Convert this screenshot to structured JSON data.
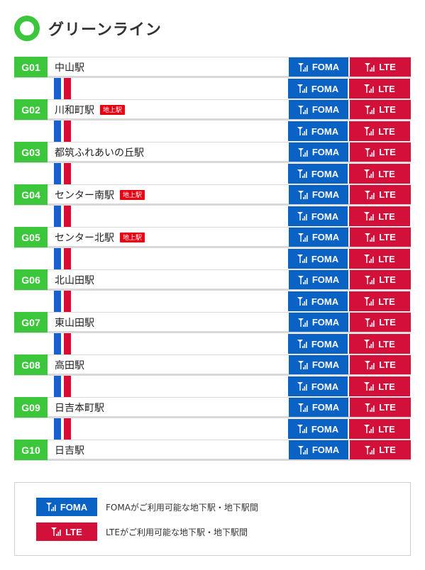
{
  "line": {
    "title": "グリーンライン",
    "color": "#3cc63c"
  },
  "badges": {
    "foma_label": "FOMA",
    "lte_label": "LTE",
    "ground_label": "地上駅"
  },
  "colors": {
    "foma": "#0a62c4",
    "lte": "#d3103a",
    "rail_blue": "#1a5fd0",
    "rail_red": "#d80b34",
    "ground": "#e60012"
  },
  "stations": [
    {
      "code": "G01",
      "name": "中山駅",
      "ground": false
    },
    {
      "code": "G02",
      "name": "川和町駅",
      "ground": true
    },
    {
      "code": "G03",
      "name": "都筑ふれあいの丘駅",
      "ground": false
    },
    {
      "code": "G04",
      "name": "センター南駅",
      "ground": true
    },
    {
      "code": "G05",
      "name": "センター北駅",
      "ground": true
    },
    {
      "code": "G06",
      "name": "北山田駅",
      "ground": false
    },
    {
      "code": "G07",
      "name": "東山田駅",
      "ground": false
    },
    {
      "code": "G08",
      "name": "高田駅",
      "ground": false
    },
    {
      "code": "G09",
      "name": "日吉本町駅",
      "ground": false
    },
    {
      "code": "G10",
      "name": "日吉駅",
      "ground": false
    }
  ],
  "legend": {
    "foma_text": "FOMAがご利用可能な地下駅・地下駅間",
    "lte_text": "LTEがご利用可能な地下駅・地下駅間"
  }
}
